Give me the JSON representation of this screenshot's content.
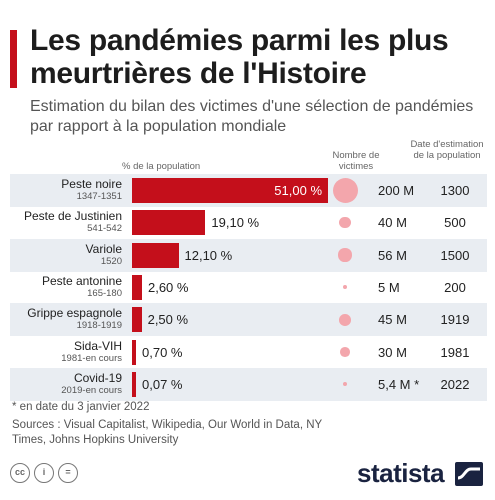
{
  "header": {
    "title": "Les pandémies parmi les plus meurtrières de l'Histoire",
    "subtitle": "Estimation du bilan des victimes d'une sélection de pandémies par rapport à la population mondiale"
  },
  "columns": {
    "pct_header": "% de la population",
    "victims_header": "Nombre de victimes",
    "date_header": "Date d'estimation de la population"
  },
  "chart_data": {
    "type": "bar",
    "orientation": "horizontal",
    "title": "Les pandémies parmi les plus meurtrières de l'Histoire",
    "subtitle": "Estimation du bilan des victimes d'une sélection de pandémies par rapport à la population mondiale",
    "xlabel": "% de la population",
    "xlim": [
      0,
      51
    ],
    "grid": false,
    "bar_color": "#c40f1b",
    "bubble_color": "#f3a6ac",
    "categories": [
      "Peste noire",
      "Peste de Justinien",
      "Variole",
      "Peste antonine",
      "Grippe espagnole",
      "Sida-VIH",
      "Covid-19"
    ],
    "periods": [
      "1347-1351",
      "541-542",
      "1520",
      "165-180",
      "1918-1919",
      "1981-en cours",
      "2019-en cours"
    ],
    "values": [
      51.0,
      19.1,
      12.1,
      2.6,
      2.5,
      0.7,
      0.07
    ],
    "value_labels": [
      "51,00 %",
      "19,10 %",
      "12,10 %",
      "2,60 %",
      "2,50 %",
      "0,70 %",
      "0,07 %"
    ],
    "victims_millions": [
      200,
      40,
      56,
      5,
      45,
      30,
      5.4
    ],
    "victims_labels": [
      "200 M",
      "40 M",
      "56 M",
      "5 M",
      "45 M",
      "30 M",
      "5,4 M *"
    ],
    "population_dates": [
      "1300",
      "500",
      "1500",
      "200",
      "1919",
      "1981",
      "2022"
    ]
  },
  "footer": {
    "footnote": "* en date du 3 janvier 2022",
    "sources": "Sources : Visual Capitalist, Wikipedia, Our World in Data, NY Times, Johns Hopkins University",
    "license_icons": [
      "cc",
      "i",
      "="
    ],
    "brand": "statista"
  },
  "colors": {
    "accent": "#c40f1b",
    "row_shade": "#e9edf2",
    "bubble": "#f3a6ac",
    "brand": "#1a2340"
  }
}
